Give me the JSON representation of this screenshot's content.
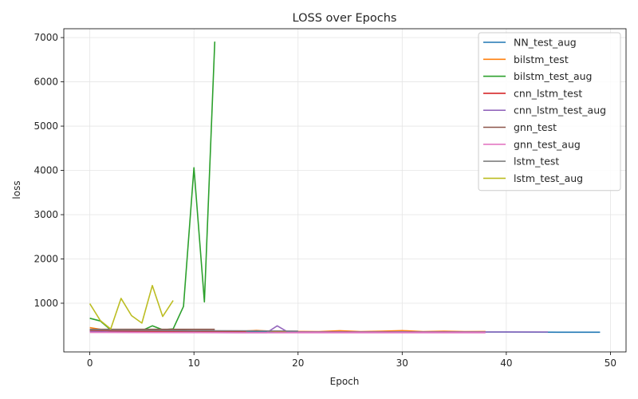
{
  "chart_data": {
    "type": "line",
    "title": "LOSS over Epochs",
    "xlabel": "Epoch",
    "ylabel": "loss",
    "xlim": [
      -2.5,
      51.5
    ],
    "ylim": [
      -100,
      7200
    ],
    "xticks": [
      0,
      10,
      20,
      30,
      40,
      50
    ],
    "yticks": [
      1000,
      2000,
      3000,
      4000,
      5000,
      6000,
      7000
    ],
    "grid": true,
    "legend_position": "top-right",
    "series": [
      {
        "name": "NN_test_aug",
        "color": "#1f77b4",
        "x": [
          0,
          5,
          10,
          15,
          20,
          25,
          30,
          35,
          40,
          45,
          49
        ],
        "y": [
          400,
          370,
          360,
          355,
          352,
          350,
          350,
          348,
          348,
          346,
          345
        ]
      },
      {
        "name": "bilstm_test",
        "color": "#ff7f0e",
        "x": [
          0,
          2,
          4,
          6,
          8,
          10,
          12,
          14,
          16,
          18,
          20,
          22,
          24,
          26,
          28,
          30,
          32,
          34,
          36,
          38
        ],
        "y": [
          450,
          370,
          365,
          362,
          360,
          360,
          358,
          358,
          385,
          360,
          362,
          358,
          380,
          360,
          368,
          382,
          358,
          368,
          360,
          362
        ]
      },
      {
        "name": "bilstm_test_aug",
        "color": "#2ca02c",
        "x": [
          0,
          1,
          2,
          3,
          4,
          5,
          6,
          7,
          8,
          9,
          10,
          11,
          12
        ],
        "y": [
          660,
          600,
          400,
          380,
          380,
          380,
          490,
          400,
          420,
          930,
          4060,
          1030,
          6910
        ]
      },
      {
        "name": "cnn_lstm_test",
        "color": "#d62728",
        "x": [
          0,
          5,
          10,
          15
        ],
        "y": [
          380,
          370,
          365,
          360
        ]
      },
      {
        "name": "cnn_lstm_test_aug",
        "color": "#9467bd",
        "x": [
          0,
          2,
          4,
          6,
          8,
          10,
          12,
          14,
          16,
          17,
          18,
          19,
          20,
          25,
          30,
          35,
          40,
          44
        ],
        "y": [
          360,
          350,
          345,
          342,
          340,
          340,
          338,
          336,
          336,
          336,
          490,
          350,
          348,
          348,
          350,
          350,
          350,
          350
        ]
      },
      {
        "name": "gnn_test",
        "color": "#8c564b",
        "x": [
          0,
          2,
          4,
          6,
          8,
          10,
          12
        ],
        "y": [
          410,
          410,
          410,
          410,
          410,
          410,
          410
        ]
      },
      {
        "name": "gnn_test_aug",
        "color": "#e377c2",
        "x": [
          0,
          5,
          10,
          15,
          20,
          25,
          30,
          35,
          38
        ],
        "y": [
          340,
          338,
          336,
          334,
          334,
          334,
          334,
          334,
          334
        ]
      },
      {
        "name": "lstm_test",
        "color": "#7f7f7f",
        "x": [
          0,
          5,
          10,
          15,
          20
        ],
        "y": [
          400,
          390,
          380,
          375,
          370
        ]
      },
      {
        "name": "lstm_test_aug",
        "color": "#bcbd22",
        "x": [
          0,
          1,
          2,
          3,
          4,
          5,
          6,
          7,
          8
        ],
        "y": [
          990,
          610,
          420,
          1110,
          720,
          550,
          1400,
          700,
          1060
        ]
      }
    ]
  }
}
